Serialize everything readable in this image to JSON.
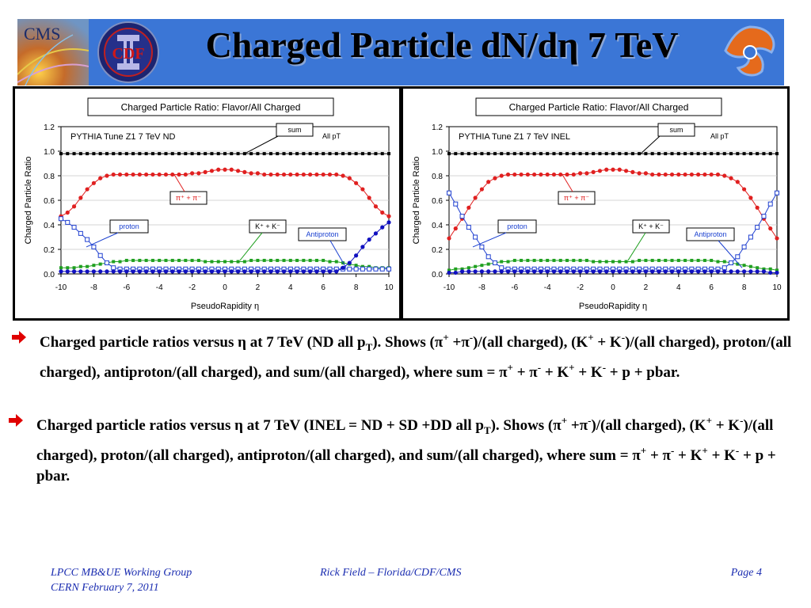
{
  "header": {
    "title": "Charged Particle dN/dη 7 TeV",
    "logo_cms": "CMS",
    "logo_cdf": "CDF"
  },
  "chart_data": [
    {
      "type": "line",
      "title": "Charged Particle Ratio: Flavor/All Charged",
      "subtitle": "PYTHIA Tune Z1 7 TeV ND",
      "note": "All pT",
      "xlabel": "PseudoRapidity η",
      "ylabel": "Charged Particle Ratio",
      "xlim": [
        -10,
        10
      ],
      "ylim": [
        0,
        1.2
      ],
      "xticks": [
        "-10",
        "-8",
        "-6",
        "-4",
        "-2",
        "0",
        "2",
        "4",
        "6",
        "8",
        "10"
      ],
      "yticks": [
        "0.0",
        "0.2",
        "0.4",
        "0.6",
        "0.8",
        "1.0",
        "1.2"
      ],
      "x": [
        -10,
        -9.6,
        -9.2,
        -8.8,
        -8.4,
        -8,
        -7.6,
        -7.2,
        -6.8,
        -6.4,
        -6,
        -5.6,
        -5.2,
        -4.8,
        -4.4,
        -4,
        -3.6,
        -3.2,
        -2.8,
        -2.4,
        -2,
        -1.6,
        -1.2,
        -0.8,
        -0.4,
        0,
        0.4,
        0.8,
        1.2,
        1.6,
        2,
        2.4,
        2.8,
        3.2,
        3.6,
        4,
        4.4,
        4.8,
        5.2,
        5.6,
        6,
        6.4,
        6.8,
        7.2,
        7.6,
        8,
        8.4,
        8.8,
        9.2,
        9.6,
        10
      ],
      "series": [
        {
          "name": "sum",
          "color": "#000000",
          "marker": "square-filled",
          "values": [
            0.98,
            0.98,
            0.98,
            0.98,
            0.98,
            0.98,
            0.98,
            0.98,
            0.98,
            0.98,
            0.98,
            0.98,
            0.98,
            0.98,
            0.98,
            0.98,
            0.98,
            0.98,
            0.98,
            0.98,
            0.98,
            0.98,
            0.98,
            0.98,
            0.98,
            0.98,
            0.98,
            0.98,
            0.98,
            0.98,
            0.98,
            0.98,
            0.98,
            0.98,
            0.98,
            0.98,
            0.98,
            0.98,
            0.98,
            0.98,
            0.98,
            0.98,
            0.98,
            0.98,
            0.98,
            0.98,
            0.98,
            0.98,
            0.98,
            0.98,
            0.98
          ]
        },
        {
          "name": "π⁺ + π⁻",
          "color": "#e02020",
          "marker": "circle-filled",
          "values": [
            0.47,
            0.5,
            0.55,
            0.62,
            0.69,
            0.74,
            0.78,
            0.8,
            0.81,
            0.81,
            0.81,
            0.81,
            0.81,
            0.81,
            0.81,
            0.81,
            0.81,
            0.81,
            0.81,
            0.81,
            0.82,
            0.82,
            0.83,
            0.84,
            0.85,
            0.85,
            0.85,
            0.84,
            0.83,
            0.82,
            0.82,
            0.81,
            0.81,
            0.81,
            0.81,
            0.81,
            0.81,
            0.81,
            0.81,
            0.81,
            0.81,
            0.81,
            0.81,
            0.8,
            0.78,
            0.74,
            0.69,
            0.62,
            0.55,
            0.5,
            0.47
          ]
        },
        {
          "name": "K⁺ + K⁻",
          "color": "#20a020",
          "marker": "square-filled",
          "values": [
            0.05,
            0.05,
            0.05,
            0.06,
            0.06,
            0.07,
            0.08,
            0.09,
            0.1,
            0.1,
            0.11,
            0.11,
            0.11,
            0.11,
            0.11,
            0.11,
            0.11,
            0.11,
            0.11,
            0.11,
            0.11,
            0.11,
            0.1,
            0.1,
            0.1,
            0.1,
            0.1,
            0.1,
            0.1,
            0.11,
            0.11,
            0.11,
            0.11,
            0.11,
            0.11,
            0.11,
            0.11,
            0.11,
            0.11,
            0.11,
            0.11,
            0.1,
            0.1,
            0.09,
            0.08,
            0.07,
            0.06,
            0.06,
            0.05,
            0.05,
            0.05
          ]
        },
        {
          "name": "proton",
          "color": "#2040d0",
          "marker": "square-open",
          "values": [
            0.45,
            0.42,
            0.38,
            0.33,
            0.28,
            0.22,
            0.15,
            0.09,
            0.05,
            0.04,
            0.04,
            0.04,
            0.04,
            0.04,
            0.04,
            0.04,
            0.04,
            0.04,
            0.04,
            0.04,
            0.04,
            0.04,
            0.04,
            0.04,
            0.04,
            0.04,
            0.04,
            0.04,
            0.04,
            0.04,
            0.04,
            0.04,
            0.04,
            0.04,
            0.04,
            0.04,
            0.04,
            0.04,
            0.04,
            0.04,
            0.04,
            0.04,
            0.04,
            0.04,
            0.04,
            0.04,
            0.04,
            0.04,
            0.04,
            0.04,
            0.04
          ]
        },
        {
          "name": "Antiproton",
          "color": "#1010c0",
          "marker": "circle-filled",
          "values": [
            0.02,
            0.02,
            0.02,
            0.02,
            0.02,
            0.02,
            0.02,
            0.02,
            0.02,
            0.02,
            0.02,
            0.02,
            0.02,
            0.02,
            0.02,
            0.02,
            0.02,
            0.02,
            0.02,
            0.02,
            0.02,
            0.02,
            0.02,
            0.02,
            0.02,
            0.02,
            0.02,
            0.02,
            0.02,
            0.02,
            0.02,
            0.02,
            0.02,
            0.02,
            0.02,
            0.02,
            0.02,
            0.02,
            0.02,
            0.02,
            0.02,
            0.02,
            0.02,
            0.05,
            0.09,
            0.15,
            0.22,
            0.28,
            0.33,
            0.38,
            0.42
          ]
        }
      ]
    },
    {
      "type": "line",
      "title": "Charged Particle Ratio: Flavor/All Charged",
      "subtitle": "PYTHIA Tune Z1 7 TeV INEL",
      "note": "All pT",
      "xlabel": "PseudoRapidity η",
      "ylabel": "Charged Particle Ratio",
      "xlim": [
        -10,
        10
      ],
      "ylim": [
        0,
        1.2
      ],
      "xticks": [
        "-10",
        "-8",
        "-6",
        "-4",
        "-2",
        "0",
        "2",
        "4",
        "6",
        "8",
        "10"
      ],
      "yticks": [
        "0.0",
        "0.2",
        "0.4",
        "0.6",
        "0.8",
        "1.0",
        "1.2"
      ],
      "x": [
        -10,
        -9.6,
        -9.2,
        -8.8,
        -8.4,
        -8,
        -7.6,
        -7.2,
        -6.8,
        -6.4,
        -6,
        -5.6,
        -5.2,
        -4.8,
        -4.4,
        -4,
        -3.6,
        -3.2,
        -2.8,
        -2.4,
        -2,
        -1.6,
        -1.2,
        -0.8,
        -0.4,
        0,
        0.4,
        0.8,
        1.2,
        1.6,
        2,
        2.4,
        2.8,
        3.2,
        3.6,
        4,
        4.4,
        4.8,
        5.2,
        5.6,
        6,
        6.4,
        6.8,
        7.2,
        7.6,
        8,
        8.4,
        8.8,
        9.2,
        9.6,
        10
      ],
      "series": [
        {
          "name": "sum",
          "color": "#000000",
          "marker": "square-filled",
          "values": [
            0.98,
            0.98,
            0.98,
            0.98,
            0.98,
            0.98,
            0.98,
            0.98,
            0.98,
            0.98,
            0.98,
            0.98,
            0.98,
            0.98,
            0.98,
            0.98,
            0.98,
            0.98,
            0.98,
            0.98,
            0.98,
            0.98,
            0.98,
            0.98,
            0.98,
            0.98,
            0.98,
            0.98,
            0.98,
            0.98,
            0.98,
            0.98,
            0.98,
            0.98,
            0.98,
            0.98,
            0.98,
            0.98,
            0.98,
            0.98,
            0.98,
            0.98,
            0.98,
            0.98,
            0.98,
            0.98,
            0.98,
            0.98,
            0.98,
            0.98,
            0.98
          ]
        },
        {
          "name": "π⁺ + π⁻",
          "color": "#e02020",
          "marker": "circle-filled",
          "values": [
            0.29,
            0.37,
            0.45,
            0.54,
            0.62,
            0.69,
            0.75,
            0.78,
            0.8,
            0.81,
            0.81,
            0.81,
            0.81,
            0.81,
            0.81,
            0.81,
            0.81,
            0.81,
            0.81,
            0.81,
            0.82,
            0.82,
            0.83,
            0.84,
            0.85,
            0.85,
            0.85,
            0.84,
            0.83,
            0.82,
            0.82,
            0.81,
            0.81,
            0.81,
            0.81,
            0.81,
            0.81,
            0.81,
            0.81,
            0.81,
            0.81,
            0.81,
            0.8,
            0.78,
            0.75,
            0.69,
            0.62,
            0.54,
            0.45,
            0.37,
            0.29
          ]
        },
        {
          "name": "K⁺ + K⁻",
          "color": "#20a020",
          "marker": "square-filled",
          "values": [
            0.03,
            0.04,
            0.04,
            0.05,
            0.06,
            0.07,
            0.08,
            0.09,
            0.1,
            0.1,
            0.11,
            0.11,
            0.11,
            0.11,
            0.11,
            0.11,
            0.11,
            0.11,
            0.11,
            0.11,
            0.11,
            0.11,
            0.1,
            0.1,
            0.1,
            0.1,
            0.1,
            0.1,
            0.1,
            0.11,
            0.11,
            0.11,
            0.11,
            0.11,
            0.11,
            0.11,
            0.11,
            0.11,
            0.11,
            0.11,
            0.11,
            0.1,
            0.1,
            0.09,
            0.08,
            0.07,
            0.06,
            0.05,
            0.04,
            0.04,
            0.03
          ]
        },
        {
          "name": "proton",
          "color": "#2040d0",
          "marker": "square-open",
          "values": [
            0.66,
            0.57,
            0.47,
            0.38,
            0.3,
            0.22,
            0.14,
            0.09,
            0.05,
            0.04,
            0.04,
            0.04,
            0.04,
            0.04,
            0.04,
            0.04,
            0.04,
            0.04,
            0.04,
            0.04,
            0.04,
            0.04,
            0.04,
            0.04,
            0.04,
            0.04,
            0.04,
            0.04,
            0.04,
            0.04,
            0.04,
            0.04,
            0.04,
            0.04,
            0.04,
            0.04,
            0.04,
            0.04,
            0.04,
            0.04,
            0.04,
            0.04,
            0.05,
            0.09,
            0.14,
            0.22,
            0.3,
            0.38,
            0.47,
            0.57,
            0.66
          ]
        },
        {
          "name": "Antiproton",
          "color": "#1010c0",
          "marker": "circle-filled",
          "values": [
            0.01,
            0.01,
            0.02,
            0.02,
            0.02,
            0.02,
            0.02,
            0.02,
            0.02,
            0.02,
            0.02,
            0.02,
            0.02,
            0.02,
            0.02,
            0.02,
            0.02,
            0.02,
            0.02,
            0.02,
            0.02,
            0.02,
            0.02,
            0.02,
            0.02,
            0.02,
            0.02,
            0.02,
            0.02,
            0.02,
            0.02,
            0.02,
            0.02,
            0.02,
            0.02,
            0.02,
            0.02,
            0.02,
            0.02,
            0.02,
            0.02,
            0.02,
            0.02,
            0.02,
            0.02,
            0.02,
            0.02,
            0.02,
            0.02,
            0.01,
            0.01
          ]
        }
      ]
    }
  ],
  "bullets": [
    {
      "parts": [
        "Charged particle ratios versus ",
        "η",
        " at 7 TeV (ND all p",
        "T",
        "). Shows (",
        "π",
        "+",
        " +",
        "π",
        "-",
        ")/(all charged), (K",
        "+",
        " + K",
        "-",
        ")/(all charged), proton/(all charged), antiproton/(all charged), and sum/(all charged), where sum = ",
        "π",
        "+",
        " + ",
        "π",
        "-",
        " + K",
        "+",
        " + K",
        "-",
        " + p + pbar."
      ]
    },
    {
      "parts": [
        "Charged particle ratios versus ",
        "η",
        " at 7 TeV (INEL = ND + SD +DD all p",
        "T",
        "). Shows (",
        "π",
        "+",
        " +",
        "π",
        "-",
        ")/(all charged), (K",
        "+",
        " + K",
        "-",
        ")/(all charged), proton/(all charged), antiproton/(all charged), and sum/(all charged), where sum = ",
        "π",
        "+",
        " + ",
        "π",
        "-",
        " + K",
        "+",
        " + K",
        "-",
        " + p + pbar."
      ]
    }
  ],
  "footer": {
    "left_line1": "LPCC MB&UE Working Group",
    "left_line2": "CERN February 7, 2011",
    "center": "Rick Field – Florida/CDF/CMS",
    "right": "Page 4"
  },
  "colors": {
    "header_bg": "#3b76d6",
    "footer_text": "#1a2cb0",
    "bullet_arrow": "#e00000"
  }
}
